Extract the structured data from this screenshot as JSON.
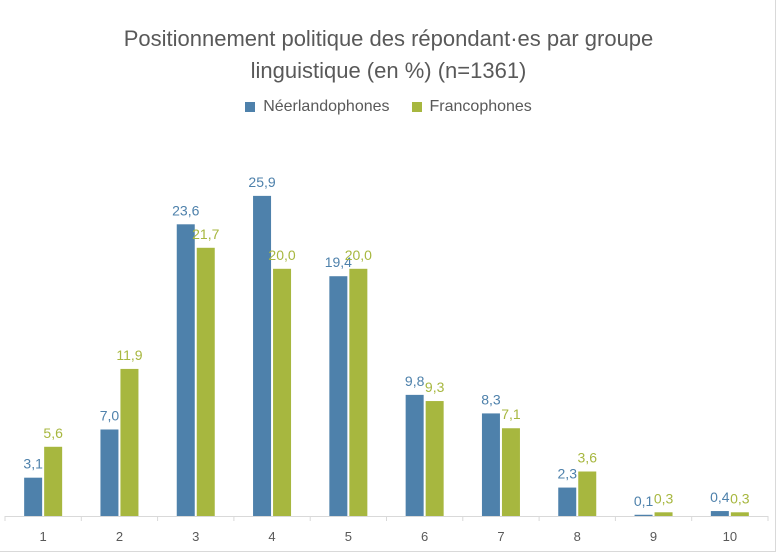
{
  "chart_data": {
    "type": "bar",
    "title_line1": "Positionnement politique des répondant·es par groupe",
    "title_line2": "linguistique (en %) (n=1361)",
    "categories": [
      "1",
      "2",
      "3",
      "4",
      "5",
      "6",
      "7",
      "8",
      "9",
      "10"
    ],
    "series": [
      {
        "name": "Néerlandophones",
        "color": "#4e81ab",
        "values": [
          3.1,
          7.0,
          23.6,
          25.9,
          19.4,
          9.8,
          8.3,
          2.3,
          0.1,
          0.4
        ],
        "labels": [
          "3,1",
          "7,0",
          "23,6",
          "25,9",
          "19,4",
          "9,8",
          "8,3",
          "2,3",
          "0,1",
          "0,4"
        ]
      },
      {
        "name": "Francophones",
        "color": "#a7b73f",
        "values": [
          5.6,
          11.9,
          21.7,
          20.0,
          20.0,
          9.3,
          7.1,
          3.6,
          0.3,
          0.3
        ],
        "labels": [
          "5,6",
          "11,9",
          "21,7",
          "20,0",
          "20,0",
          "9,3",
          "7,1",
          "3,6",
          "0,3",
          "0,3"
        ]
      }
    ],
    "ylim": [
      0,
      25.9
    ],
    "legend_position": "top",
    "grid": false
  }
}
